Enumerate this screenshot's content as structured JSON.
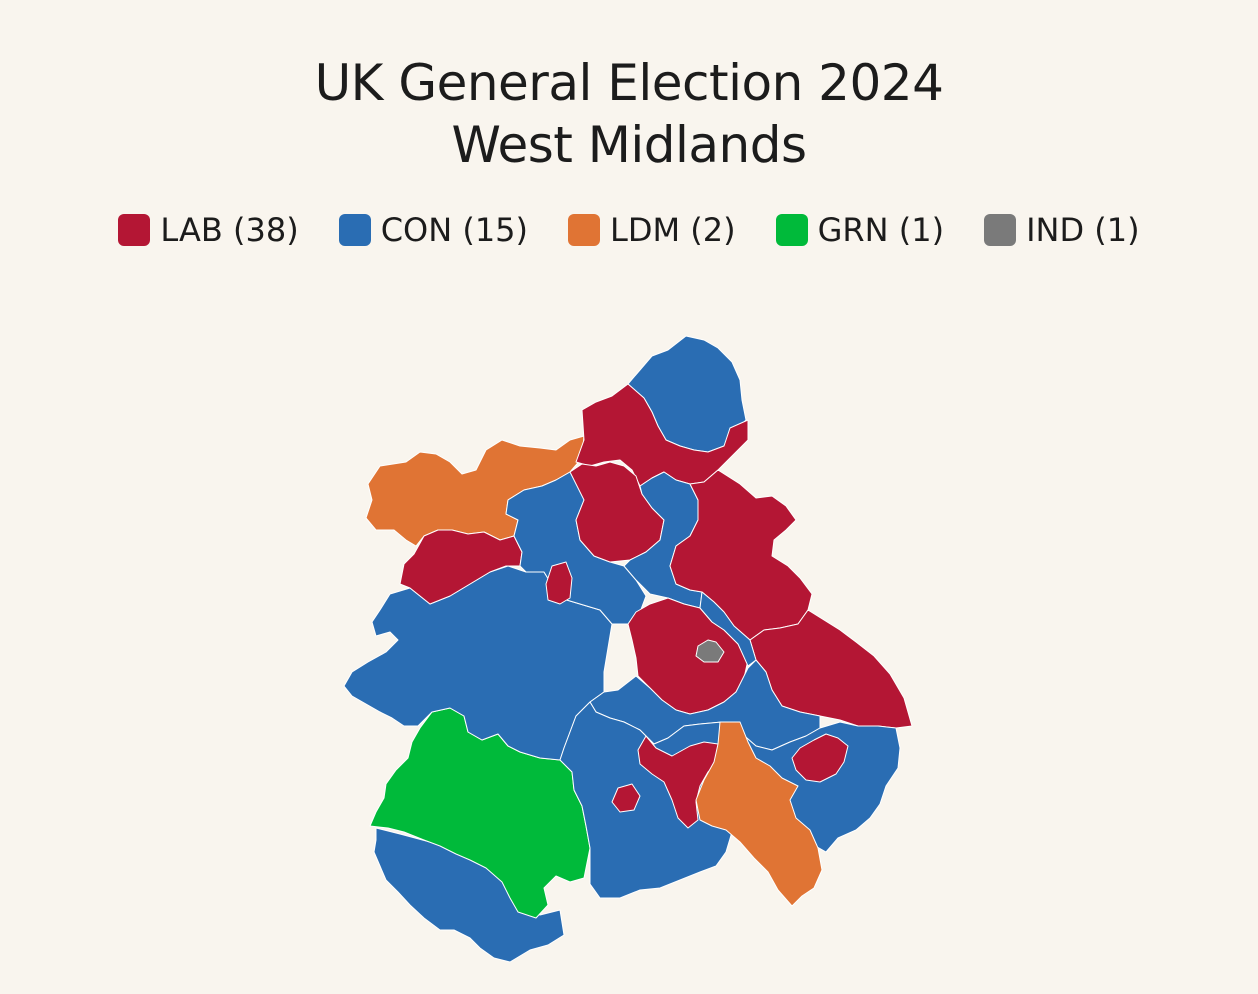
{
  "title": {
    "line1": "UK General Election 2024",
    "line2": "West Midlands"
  },
  "legend": [
    {
      "party": "LAB",
      "label": "LAB (38)",
      "color": "#b41634"
    },
    {
      "party": "CON",
      "label": "CON (15)",
      "color": "#2a6db3"
    },
    {
      "party": "LDM",
      "label": "LDM (2)",
      "color": "#e07434"
    },
    {
      "party": "GRN",
      "label": "GRN (1)",
      "color": "#00ba3a"
    },
    {
      "party": "IND",
      "label": "IND (1)",
      "color": "#7a7a7a"
    }
  ],
  "seats": {
    "LAB": 38,
    "CON": 15,
    "LDM": 2,
    "GRN": 1,
    "IND": 1
  },
  "colors": {
    "background": "#f9f5ee",
    "boundary": "#ffffff"
  }
}
